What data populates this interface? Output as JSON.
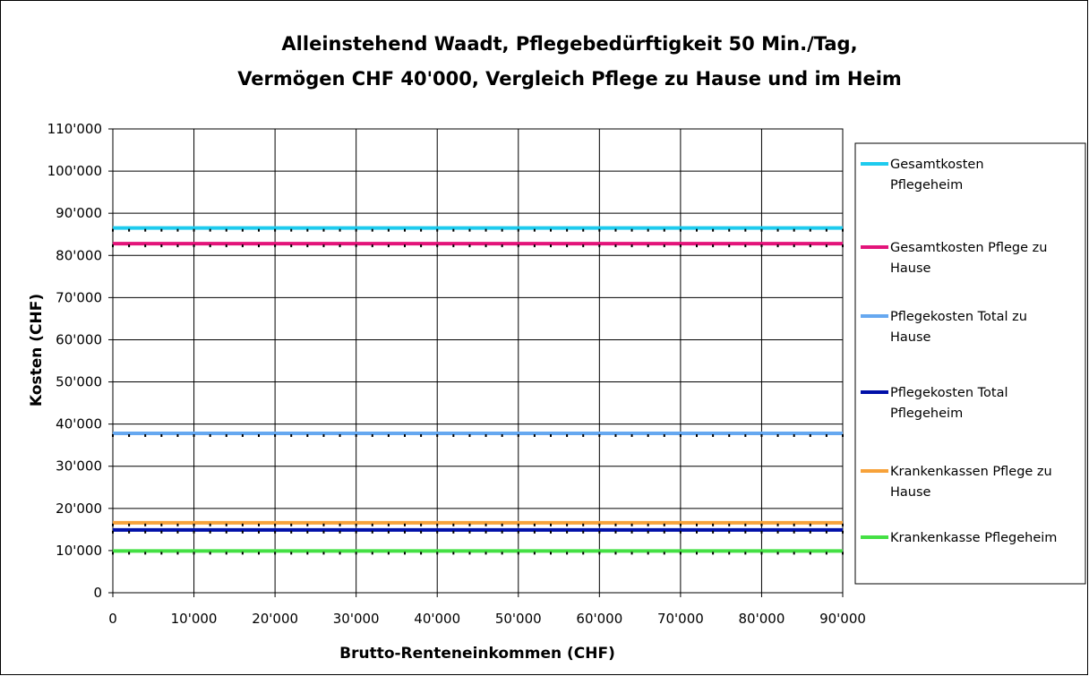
{
  "chart_data": {
    "type": "line",
    "title": [
      "Alleinstehend Waadt, Pflegebedürftigkeit 50 Min./Tag,",
      "Vermögen CHF 40'000, Vergleich Pflege zu Hause und im Heim"
    ],
    "xlabel": "Brutto-Renteneinkommen (CHF)",
    "ylabel": "Kosten (CHF)",
    "xlim": [
      0,
      90000
    ],
    "ylim": [
      0,
      110000
    ],
    "xticks": [
      0,
      10000,
      20000,
      30000,
      40000,
      50000,
      60000,
      70000,
      80000,
      90000
    ],
    "xtick_labels": [
      "0",
      "10'000",
      "20'000",
      "30'000",
      "40'000",
      "50'000",
      "60'000",
      "70'000",
      "80'000",
      "90'000"
    ],
    "yticks": [
      0,
      10000,
      20000,
      30000,
      40000,
      50000,
      60000,
      70000,
      80000,
      90000,
      100000,
      110000
    ],
    "ytick_labels": [
      "0",
      "10'000",
      "20'000",
      "30'000",
      "40'000",
      "50'000",
      "60'000",
      "70'000",
      "80'000",
      "90'000",
      "100'000",
      "110'000"
    ],
    "grid": true,
    "legend_position": "right",
    "x": [
      0,
      90000
    ],
    "series": [
      {
        "name": "Gesamtkosten Pflegeheim",
        "legend_lines": [
          "Gesamtkosten",
          "Pflegeheim"
        ],
        "color": "#1ecbee",
        "values": [
          86500,
          86500
        ]
      },
      {
        "name": "Gesamtkosten Pflege zu Hause",
        "legend_lines": [
          "Gesamtkosten Pflege zu",
          "Hause"
        ],
        "color": "#e3147a",
        "values": [
          82800,
          82800
        ]
      },
      {
        "name": "Pflegekosten Total zu Hause",
        "legend_lines": [
          "Pflegekosten Total zu",
          "Hause"
        ],
        "color": "#66a8f0",
        "values": [
          37800,
          37800
        ]
      },
      {
        "name": "Pflegekosten Total Pflegeheim",
        "legend_lines": [
          "Pflegekosten Total",
          "Pflegeheim"
        ],
        "color": "#000fa8",
        "values": [
          14900,
          14900
        ]
      },
      {
        "name": "Krankenkassen Pflege zu Hause",
        "legend_lines": [
          "Krankenkassen Pflege zu",
          "Hause"
        ],
        "color": "#f7a23a",
        "values": [
          16600,
          16600
        ]
      },
      {
        "name": "Krankenkasse Pflegeheim",
        "legend_lines": [
          "Krankenkasse Pflegeheim"
        ],
        "color": "#44e044",
        "values": [
          9900,
          9900
        ]
      }
    ]
  }
}
